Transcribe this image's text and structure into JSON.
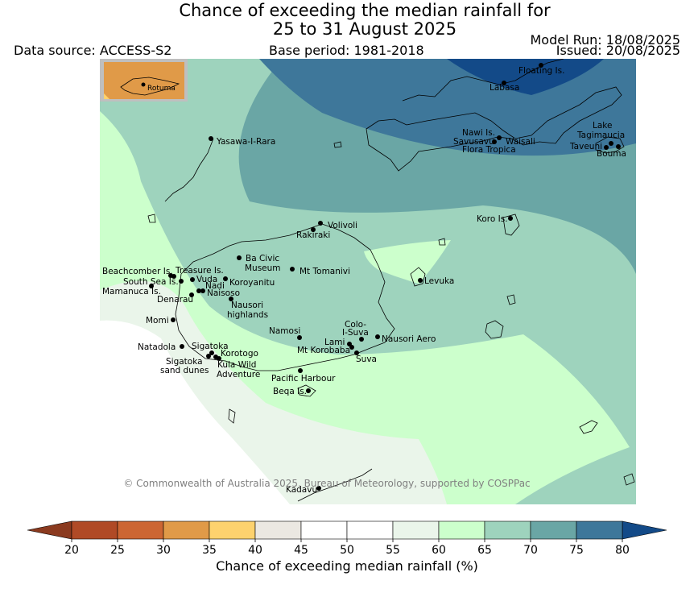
{
  "header": {
    "title_line1": "Chance of exceeding the median rainfall for",
    "title_line2": "25 to 31 August 2025",
    "data_source": "Data source: ACCESS-S2",
    "base_period": "Base period: 1981-2018",
    "model_run": "Model Run: 18/08/2025",
    "issued": "Issued: 20/08/2025"
  },
  "map": {
    "copyright": "© Commonwealth of Australia 2025, Bureau of Meteorology, supported by COSPPac",
    "inset_label": "Rotuma",
    "places": [
      {
        "name": "Floating Is."
      },
      {
        "name": "Labasa"
      },
      {
        "name": "Nawi Is."
      },
      {
        "name": "Savusavu"
      },
      {
        "name": "Waisali"
      },
      {
        "name": "Flora Tropica"
      },
      {
        "name": "Lake"
      },
      {
        "name": "Tagimaucia"
      },
      {
        "name": "Taveuni"
      },
      {
        "name": "Bouma"
      },
      {
        "name": "Yasawa-I-Rara"
      },
      {
        "name": "Koro Is."
      },
      {
        "name": "Volivoli"
      },
      {
        "name": "Rakiraki"
      },
      {
        "name": "Beachcomber Is."
      },
      {
        "name": "Treasure Is."
      },
      {
        "name": "South Sea Is."
      },
      {
        "name": "Vuda"
      },
      {
        "name": "Nadi"
      },
      {
        "name": "Mamanuca Is."
      },
      {
        "name": "Naisoso"
      },
      {
        "name": "Denarau"
      },
      {
        "name": "Koroyanitu"
      },
      {
        "name": "Ba Civic"
      },
      {
        "name": "Museum"
      },
      {
        "name": "Mt Tomanivi"
      },
      {
        "name": "Nausori"
      },
      {
        "name": "highlands"
      },
      {
        "name": "Levuka"
      },
      {
        "name": "Momi"
      },
      {
        "name": "Namosi"
      },
      {
        "name": "Colo-"
      },
      {
        "name": "I-Suva"
      },
      {
        "name": "Lami"
      },
      {
        "name": "Nausori Aero"
      },
      {
        "name": "Mt Korobaba"
      },
      {
        "name": "Suva"
      },
      {
        "name": "Natadola"
      },
      {
        "name": "Sigatoka"
      },
      {
        "name": "Korotogo"
      },
      {
        "name": "Sigatoka"
      },
      {
        "name": "sand dunes"
      },
      {
        "name": "Kula Wild"
      },
      {
        "name": "Adventure"
      },
      {
        "name": "Pacific Harbour"
      },
      {
        "name": "Beqa Is."
      },
      {
        "name": "Kadavu"
      }
    ]
  },
  "legend": {
    "label": "Chance of exceeding median rainfall (%)",
    "ticks": [
      "20",
      "25",
      "30",
      "35",
      "40",
      "45",
      "50",
      "55",
      "60",
      "65",
      "70",
      "75",
      "80"
    ],
    "low_color": "#8b3a1f",
    "colors": [
      "#b04a26",
      "#cc6633",
      "#e09a48",
      "#fdd26e",
      "#ebe8e2",
      "#ffffff",
      "#ffffff",
      "#eaf5ea",
      "#ccffcc",
      "#9ed3bd",
      "#6aa6a5",
      "#3e779a"
    ],
    "high_color": "#134a88"
  }
}
